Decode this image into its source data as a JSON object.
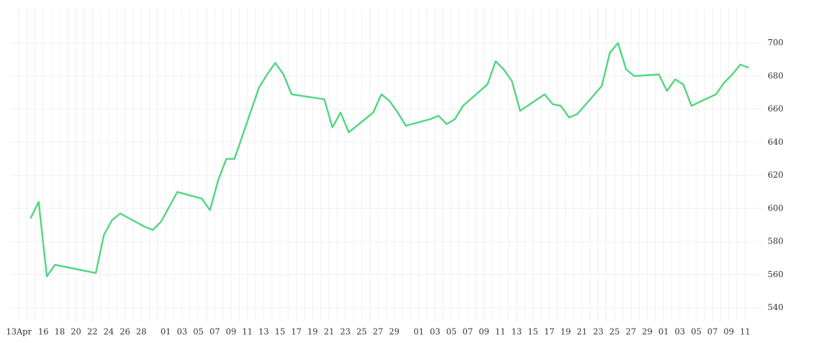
{
  "chart_data": {
    "type": "line",
    "categories": [
      "13Apr",
      null,
      null,
      "16",
      null,
      "18",
      null,
      "20",
      null,
      "22",
      null,
      "24",
      null,
      "26",
      null,
      "28",
      null,
      null,
      "01",
      null,
      "03",
      null,
      "05",
      null,
      "07",
      null,
      "09",
      null,
      "11",
      null,
      "13",
      null,
      "15",
      null,
      "17",
      null,
      "19",
      null,
      "21",
      null,
      "23",
      null,
      "25",
      null,
      "27",
      null,
      "29",
      null,
      null,
      "01",
      null,
      "03",
      null,
      "05",
      null,
      "07",
      null,
      "09",
      null,
      "11",
      null,
      "13",
      null,
      "15",
      null,
      "17",
      null,
      "19",
      null,
      "21",
      null,
      "23",
      null,
      "25",
      null,
      "27",
      null,
      "29",
      null,
      "01",
      null,
      "03",
      null,
      "05",
      null,
      "07",
      null,
      "09",
      null,
      "11"
    ],
    "series": [
      {
        "color": "#50d67f",
        "values": [
          null,
          594,
          604,
          559,
          566,
          null,
          null,
          null,
          null,
          561,
          584,
          593,
          597,
          null,
          null,
          589,
          587,
          592,
          null,
          610,
          null,
          null,
          606,
          599,
          617,
          630,
          630,
          null,
          null,
          673,
          681,
          688,
          681,
          669,
          null,
          null,
          null,
          666,
          649,
          658,
          646,
          null,
          null,
          658,
          669,
          665,
          658,
          650,
          null,
          null,
          654,
          656,
          651,
          654,
          662,
          null,
          null,
          675,
          689,
          684,
          677,
          659,
          null,
          null,
          669,
          663,
          662,
          655,
          657,
          null,
          null,
          674,
          694,
          700,
          684,
          680,
          null,
          null,
          681,
          671,
          678,
          675,
          662,
          null,
          null,
          669,
          676,
          681,
          687,
          685
        ]
      }
    ],
    "span_gaps": true,
    "ylim": [
      532,
      721
    ],
    "yticks": [
      540,
      560,
      580,
      600,
      620,
      640,
      660,
      680,
      700
    ],
    "grid": true
  }
}
